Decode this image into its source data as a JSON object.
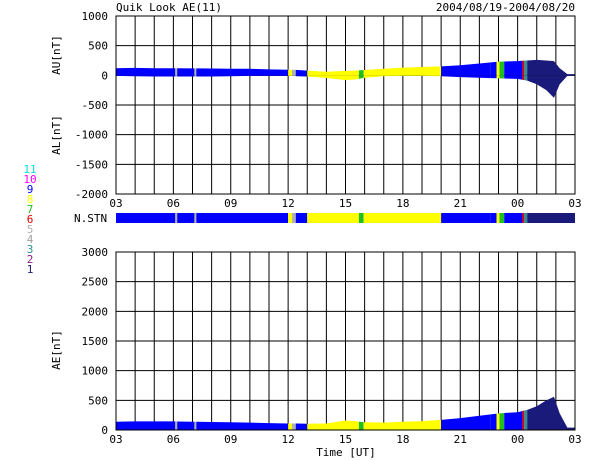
{
  "header": {
    "title": "Quik Look AE(11)",
    "date_range": "2004/08/19-2004/08/20"
  },
  "colors": {
    "stn1": "#1a1a7a",
    "stn2": "#8b1a8b",
    "stn3": "#2a9090",
    "stn4": "#a0a0a0",
    "stn5": "#b0b0b0",
    "stn6": "#e00000",
    "stn7": "#20c020",
    "stn8": "#ffff00",
    "stn9": "#0000ff",
    "stn10": "#ff00ff",
    "stn11": "#00e0e0",
    "grid": "#000000"
  },
  "chart_data": [
    {
      "type": "area",
      "panel": "AU/AL",
      "ylabel_top": "AU[nT]",
      "ylabel_bottom": "AL[nT]",
      "ylim": [
        -2000,
        1000
      ],
      "yticks": [
        1000,
        500,
        0,
        -500,
        -1000,
        -1500,
        -2000
      ],
      "xlim_hours": [
        3,
        27
      ],
      "xtick_labels": [
        "03",
        "06",
        "09",
        "12",
        "15",
        "18",
        "21",
        "00",
        "03"
      ],
      "grid": true,
      "series": [
        {
          "name": "AU",
          "x": [
            3,
            4,
            5,
            6,
            7,
            8,
            9,
            10,
            11,
            12,
            12.5,
            13,
            14,
            15,
            15.5,
            16,
            17,
            18,
            19,
            20,
            21,
            22,
            23,
            24,
            24.5,
            25,
            25.5,
            25.9,
            26.2,
            26.6
          ],
          "values": [
            120,
            125,
            120,
            120,
            118,
            115,
            112,
            110,
            100,
            95,
            90,
            80,
            60,
            75,
            80,
            90,
            110,
            130,
            140,
            150,
            170,
            200,
            230,
            240,
            250,
            260,
            250,
            240,
            120,
            20
          ]
        },
        {
          "name": "AL",
          "x": [
            3,
            4,
            5,
            6,
            7,
            8,
            9,
            10,
            11,
            12,
            12.5,
            13,
            14,
            15,
            15.5,
            16,
            17,
            18,
            19,
            20,
            21,
            22,
            23,
            24,
            24.5,
            25,
            25.5,
            25.9,
            26.2,
            26.6
          ],
          "values": [
            -10,
            -15,
            -20,
            -20,
            -20,
            -20,
            -15,
            -10,
            -10,
            -10,
            -15,
            -20,
            -45,
            -80,
            -70,
            -40,
            -15,
            -10,
            -10,
            -15,
            -30,
            -40,
            -50,
            -60,
            -90,
            -150,
            -250,
            -380,
            -150,
            -10
          ]
        }
      ]
    },
    {
      "type": "bar",
      "panel": "N.STN",
      "label": "N.STN",
      "legend_numbers": [
        "11",
        "10",
        "9",
        "8",
        "7",
        "6",
        "5",
        "4",
        "3",
        "2",
        "1"
      ],
      "segments": [
        {
          "from": 3,
          "to": 6.1,
          "stations": 9
        },
        {
          "from": 6.1,
          "to": 6.2,
          "stations": 5
        },
        {
          "from": 6.2,
          "to": 7.1,
          "stations": 9
        },
        {
          "from": 7.1,
          "to": 7.2,
          "stations": 5
        },
        {
          "from": 7.2,
          "to": 12.0,
          "stations": 9
        },
        {
          "from": 12.0,
          "to": 12.2,
          "stations": 8
        },
        {
          "from": 12.2,
          "to": 12.4,
          "stations": 5
        },
        {
          "from": 12.4,
          "to": 13.0,
          "stations": 9
        },
        {
          "from": 13.0,
          "to": 15.7,
          "stations": 8
        },
        {
          "from": 15.7,
          "to": 15.95,
          "stations": 7
        },
        {
          "from": 15.95,
          "to": 20.0,
          "stations": 8
        },
        {
          "from": 20.0,
          "to": 22.6,
          "stations": 9
        },
        {
          "from": 22.6,
          "to": 22.9,
          "stations": 9
        },
        {
          "from": 22.9,
          "to": 23.05,
          "stations": 8
        },
        {
          "from": 23.05,
          "to": 23.3,
          "stations": 7
        },
        {
          "from": 23.3,
          "to": 24.25,
          "stations": 9
        },
        {
          "from": 24.25,
          "to": 24.35,
          "stations": 6
        },
        {
          "from": 24.35,
          "to": 24.5,
          "stations": 3
        },
        {
          "from": 24.5,
          "to": 27.0,
          "stations": 1
        }
      ]
    },
    {
      "type": "area",
      "panel": "AE",
      "ylabel": "AE[nT]",
      "xlabel": "Time [UT]",
      "ylim": [
        0,
        3000
      ],
      "yticks": [
        3000,
        2500,
        2000,
        1500,
        1000,
        500,
        0
      ],
      "xlim_hours": [
        3,
        27
      ],
      "xtick_labels": [
        "03",
        "06",
        "09",
        "12",
        "15",
        "18",
        "21",
        "00",
        "03"
      ],
      "grid": true,
      "series": [
        {
          "name": "AE",
          "x": [
            3,
            4,
            5,
            6,
            7,
            8,
            9,
            10,
            11,
            12,
            12.5,
            13,
            14,
            15,
            15.5,
            16,
            17,
            18,
            19,
            20,
            21,
            22,
            23,
            24,
            24.5,
            25,
            25.5,
            25.9,
            26.2,
            26.6
          ],
          "values": [
            140,
            145,
            145,
            145,
            140,
            135,
            130,
            125,
            115,
            110,
            110,
            105,
            110,
            160,
            150,
            130,
            125,
            140,
            150,
            170,
            200,
            240,
            280,
            300,
            340,
            400,
            500,
            560,
            280,
            40
          ]
        }
      ]
    }
  ]
}
